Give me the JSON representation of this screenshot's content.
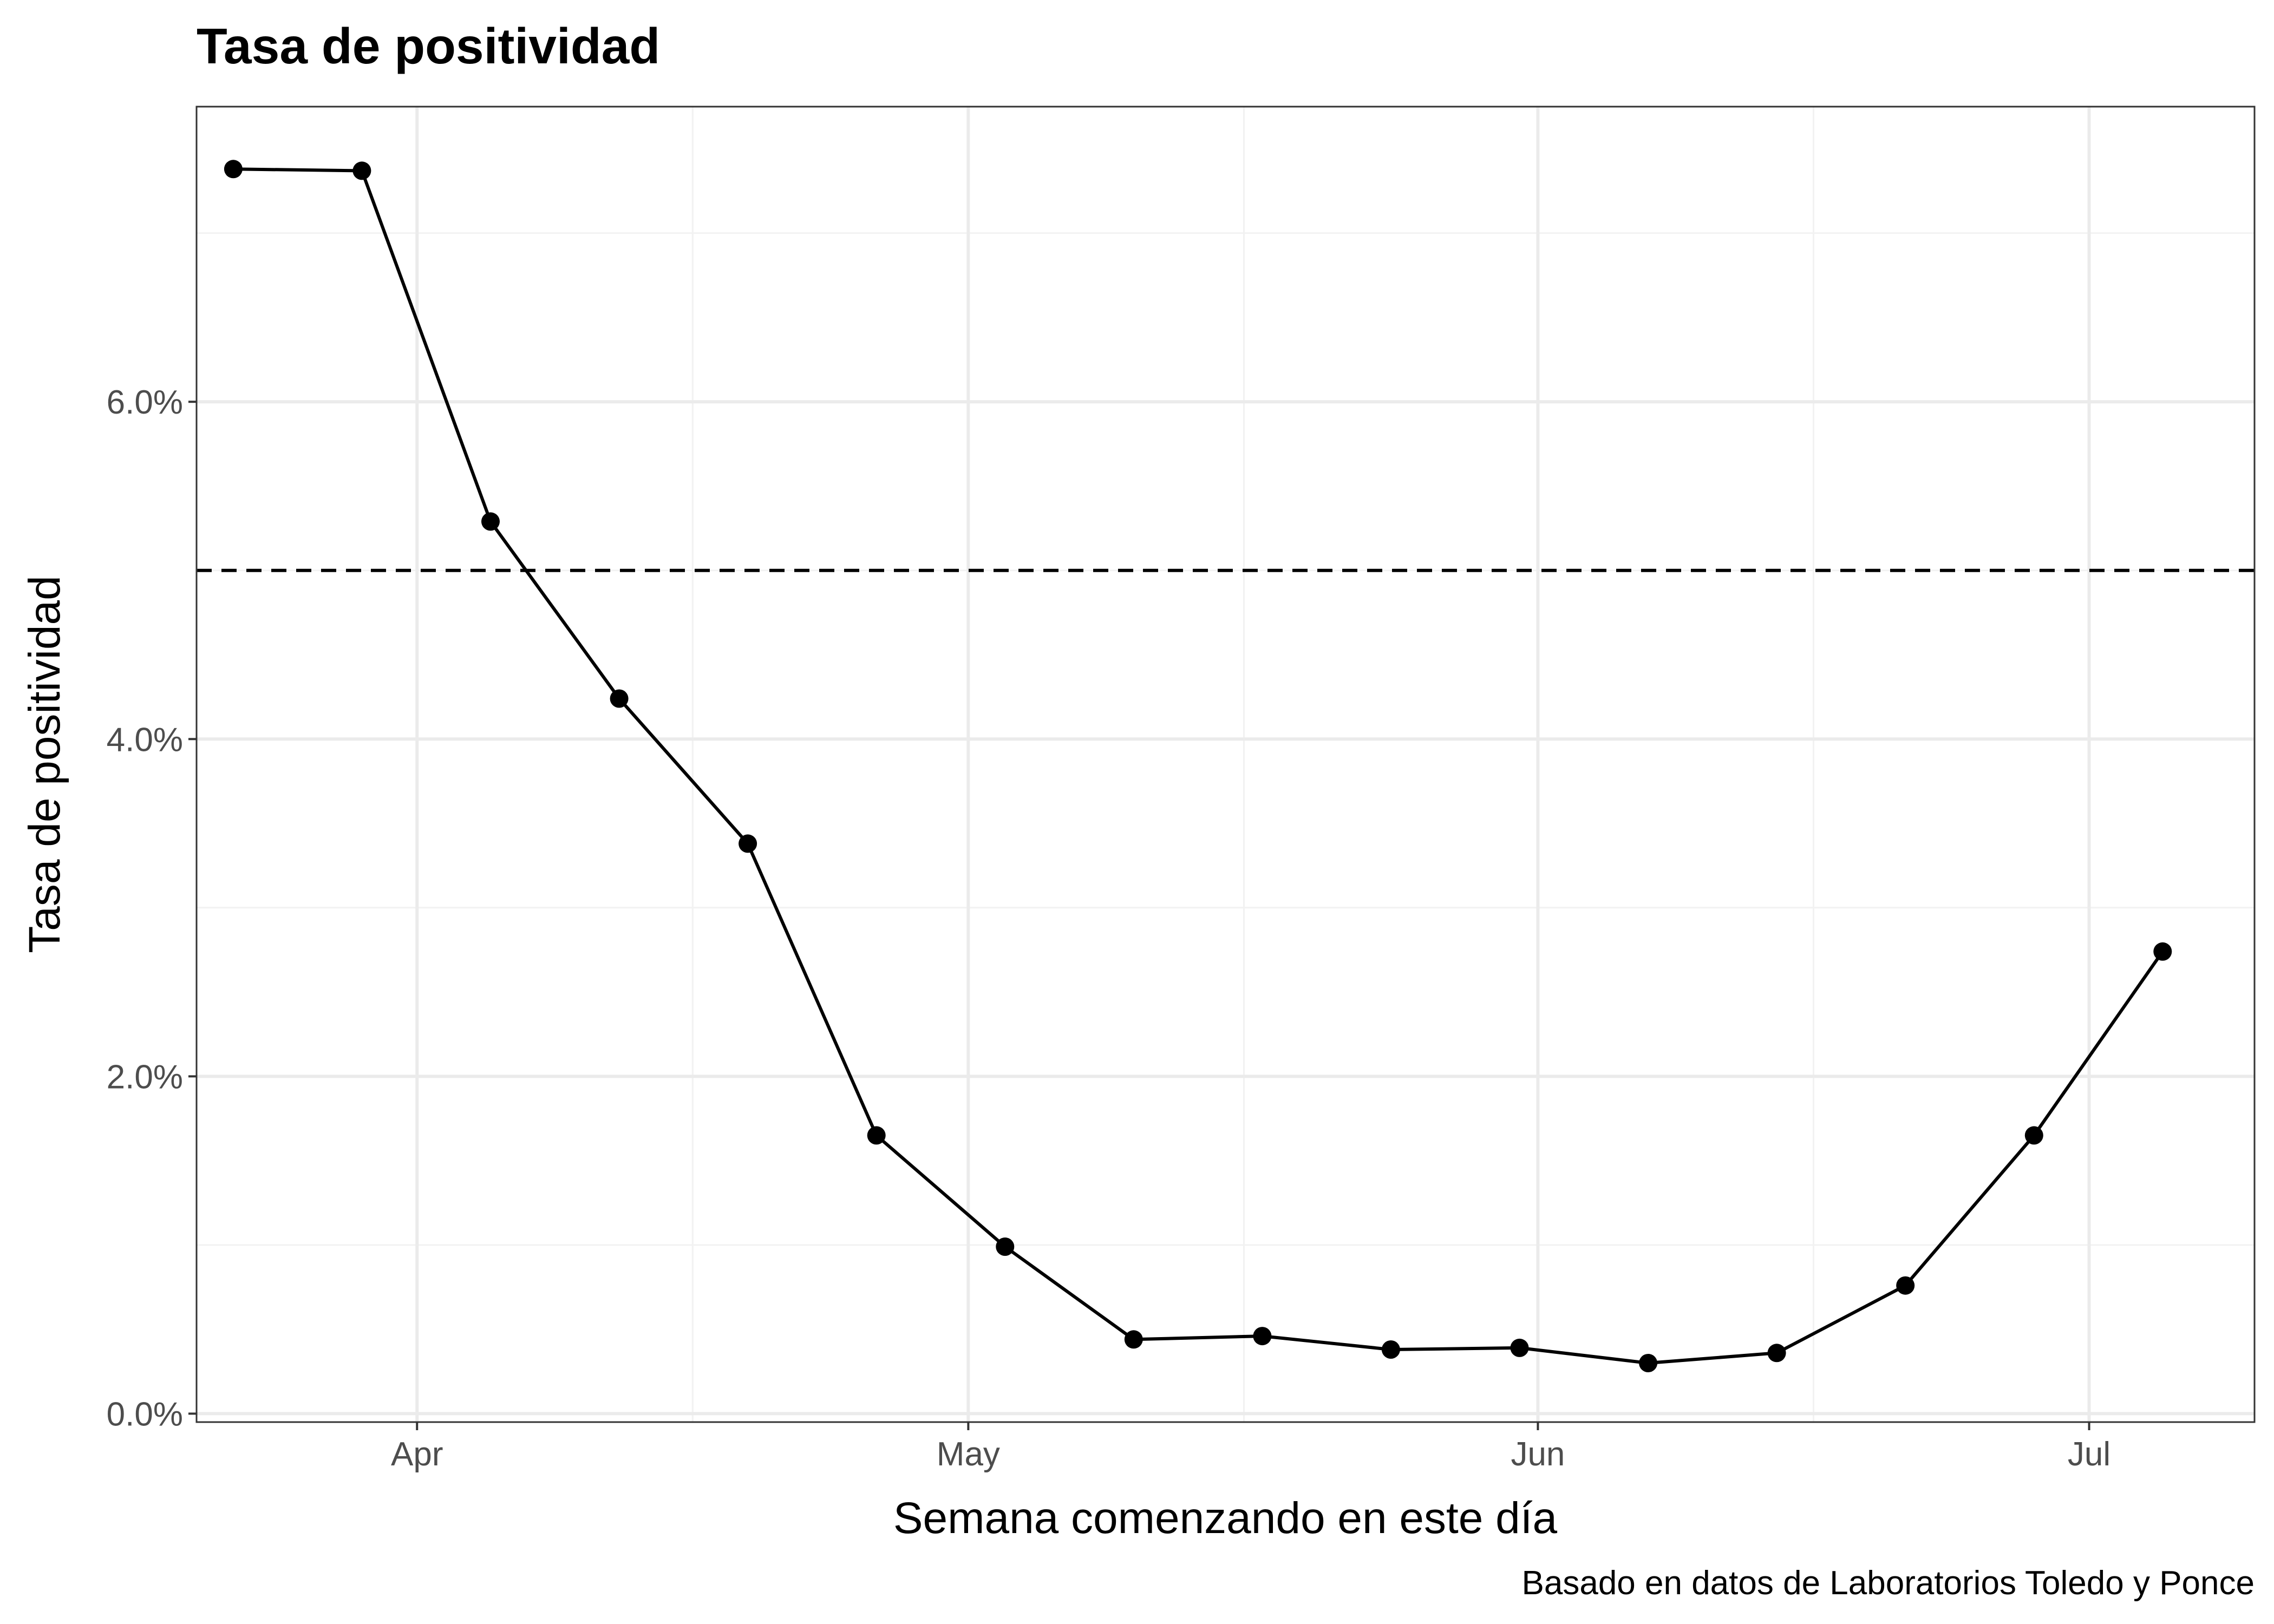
{
  "chart_data": {
    "type": "line",
    "title": "Tasa de positividad",
    "xlabel": "Semana comenzando en este día",
    "ylabel": "Tasa de positividad",
    "caption": "Basado en datos de Laboratorios Toledo y Ponce",
    "x": [
      "2020-03-22",
      "2020-03-29",
      "2020-04-05",
      "2020-04-12",
      "2020-04-19",
      "2020-04-26",
      "2020-05-03",
      "2020-05-10",
      "2020-05-17",
      "2020-05-24",
      "2020-05-31",
      "2020-06-07",
      "2020-06-14",
      "2020-06-21",
      "2020-06-28",
      "2020-07-05"
    ],
    "series": [
      {
        "values": [
          7.38,
          7.37,
          5.29,
          4.24,
          3.38,
          1.65,
          0.99,
          0.44,
          0.46,
          0.38,
          0.39,
          0.3,
          0.36,
          0.76,
          1.65,
          2.74
        ]
      }
    ],
    "reference_line": {
      "value": 5.0,
      "style": "dashed"
    },
    "xlim": [
      "2020-03-20",
      "2020-07-10"
    ],
    "ylim": [
      -0.05,
      7.75
    ],
    "x_ticks": [
      {
        "date": "2020-04-01",
        "label": "Apr"
      },
      {
        "date": "2020-05-01",
        "label": "May"
      },
      {
        "date": "2020-06-01",
        "label": "Jun"
      },
      {
        "date": "2020-07-01",
        "label": "Jul"
      }
    ],
    "x_minor_ticks": [
      "2020-04-16",
      "2020-05-16",
      "2020-06-16"
    ],
    "y_ticks": [
      {
        "value": 0,
        "label": "0.0%"
      },
      {
        "value": 2,
        "label": "2.0%"
      },
      {
        "value": 4,
        "label": "4.0%"
      },
      {
        "value": 6,
        "label": "6.0%"
      }
    ],
    "y_minor_ticks": [
      1,
      3,
      5,
      7
    ],
    "grid": true,
    "colors": {
      "line": "#000000",
      "points": "#000000",
      "grid_major": "#ebebeb",
      "grid_minor": "#f2f2f2",
      "panel_border": "#333333",
      "tick_text": "#4d4d4d"
    }
  }
}
